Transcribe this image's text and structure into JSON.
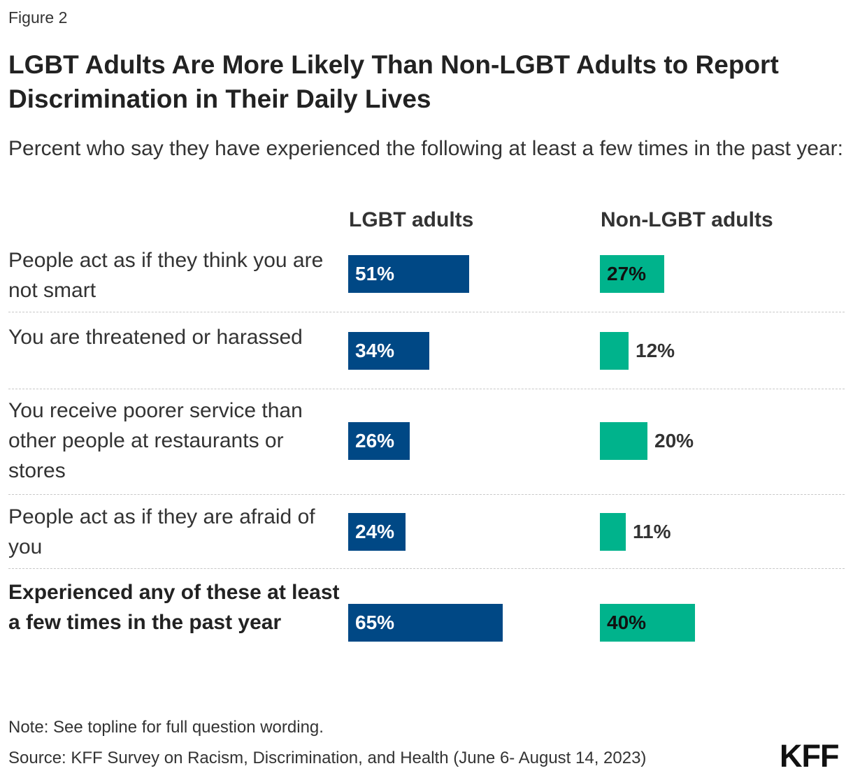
{
  "figure_label": "Figure 2",
  "logo": "KFF",
  "chart_data": {
    "type": "bar",
    "title": "LGBT Adults Are More Likely Than Non-LGBT Adults to Report Discrimination in Their Daily Lives",
    "subtitle": "Percent who say they have experienced the following at least a few times in the past year:",
    "categories": [
      "People act as if they think you are not smart",
      "You are threatened or harassed",
      "You receive poorer service than other people at restaurants or stores",
      "People act as if they are afraid of you",
      "Experienced any of these at least a few times in the past year"
    ],
    "series": [
      {
        "name": "LGBT adults",
        "values": [
          51,
          34,
          26,
          24,
          65
        ],
        "color": "#004885"
      },
      {
        "name": "Non-LGBT adults",
        "values": [
          27,
          12,
          20,
          11,
          40
        ],
        "color": "#00b38c"
      }
    ],
    "value_suffix": "%",
    "ylim": [
      0,
      100
    ],
    "note": "Note: See topline for full question wording.",
    "source": "Source: KFF Survey on Racism, Discrimination, and Health (June 6- August 14, 2023)"
  }
}
